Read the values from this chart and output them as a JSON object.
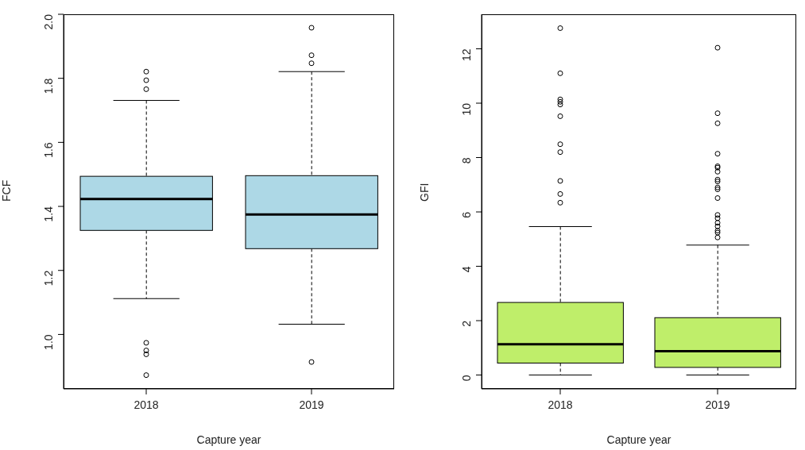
{
  "chart_data": [
    {
      "type": "box",
      "xlabel": "Capture year",
      "ylabel": "FCF",
      "categories": [
        "2018",
        "2019"
      ],
      "color": "#add8e6",
      "ylim": [
        0.83,
        2.0
      ],
      "yticks": [
        {
          "value": 1,
          "label": "1.0"
        },
        1.2,
        1.4,
        1.6,
        1.8,
        {
          "value": 2,
          "label": "2.0"
        }
      ],
      "boxes": [
        {
          "low": 1.112,
          "q1": 1.325,
          "median": 1.423,
          "q3": 1.494,
          "high": 1.731,
          "outliers": [
            1.821,
            1.794,
            1.766,
            0.974,
            0.95,
            0.938,
            0.873
          ]
        },
        {
          "low": 1.032,
          "q1": 1.268,
          "median": 1.375,
          "q3": 1.496,
          "high": 1.821,
          "outliers": [
            1.958,
            1.872,
            1.847,
            0.914
          ]
        }
      ]
    },
    {
      "type": "box",
      "xlabel": "Capture year",
      "ylabel": "GFI",
      "categories": [
        "2018",
        "2019"
      ],
      "color": "#bfee6a",
      "ylim": [
        -0.51,
        13.27
      ],
      "yticks": [
        0,
        2,
        4,
        6,
        8,
        10,
        12
      ],
      "boxes": [
        {
          "low": 0,
          "q1": 0.44,
          "median": 1.13,
          "q3": 2.67,
          "high": 5.46,
          "outliers": [
            12.76,
            11.1,
            10.14,
            10.05,
            9.95,
            9.52,
            8.49,
            8.2,
            7.14,
            6.66,
            6.34
          ]
        },
        {
          "low": 0,
          "q1": 0.28,
          "median": 0.88,
          "q3": 2.11,
          "high": 4.78,
          "outliers": [
            12.04,
            9.63,
            9.26,
            8.14,
            7.68,
            7.63,
            7.48,
            7.19,
            7.12,
            6.9,
            6.83,
            6.51,
            5.89,
            5.77,
            5.6,
            5.47,
            5.31,
            5.24,
            5.06
          ]
        }
      ]
    }
  ]
}
